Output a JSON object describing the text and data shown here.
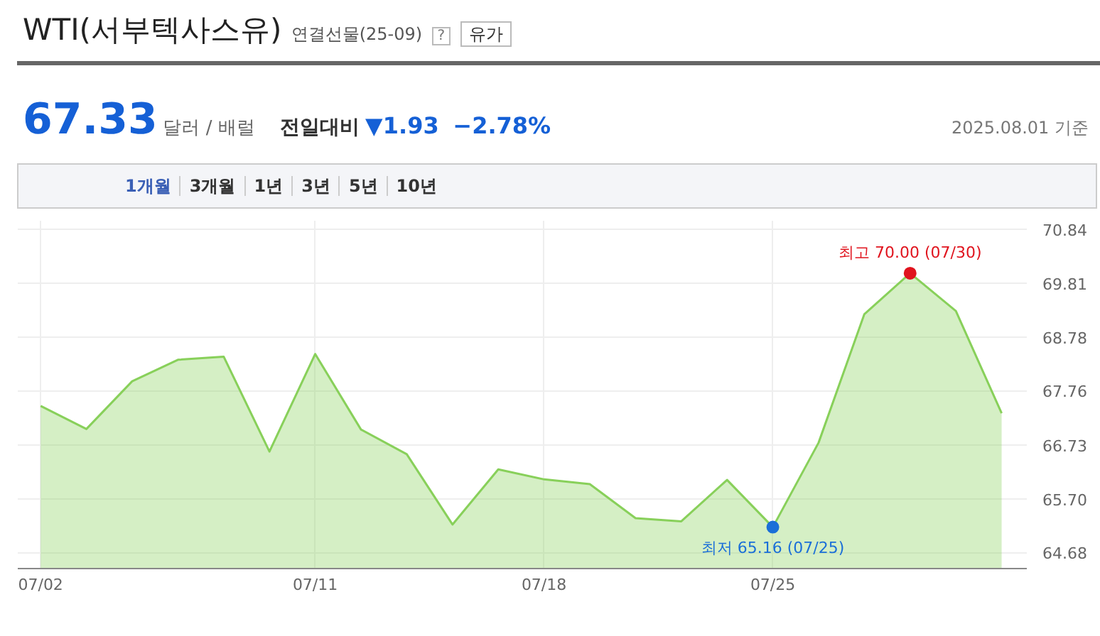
{
  "chart_data": {
    "type": "area",
    "title": "WTI(서부텍사스유)",
    "subtitle": "연결선물(25-09)",
    "categories": [
      "07/02",
      null,
      null,
      null,
      null,
      null,
      "07/11",
      null,
      null,
      null,
      null,
      "07/18",
      null,
      null,
      null,
      null,
      "07/25",
      null,
      null,
      null,
      null,
      null
    ],
    "series": [
      {
        "color": "#88d05a",
        "values": [
          67.47,
          67.03,
          67.94,
          68.35,
          68.41,
          66.6,
          68.46,
          67.02,
          66.55,
          65.21,
          66.26,
          66.07,
          65.98,
          65.33,
          65.27,
          66.06,
          65.16,
          66.77,
          69.22,
          70.0,
          69.28,
          67.33
        ]
      }
    ],
    "ylim": [
      64.37,
      71.0
    ],
    "yticks": [
      64.68,
      {
        "value": 65.7,
        "label": "65.70"
      },
      66.73,
      67.76,
      68.78,
      69.81,
      70.84
    ],
    "grid": true,
    "annotations": [
      "?",
      "유가",
      "67.33",
      "달러 / 배럴",
      "전일대비",
      "▼1.93",
      "−2.78%",
      "2025.08.01 기준",
      "1개월",
      "3개월",
      "1년",
      "3년",
      "5년",
      "10년",
      {
        "text": "최고 70.00 (07/30)",
        "y": 70.0
      },
      {
        "text": "최저 65.16 (07/25)",
        "y": 65.16
      }
    ]
  }
}
